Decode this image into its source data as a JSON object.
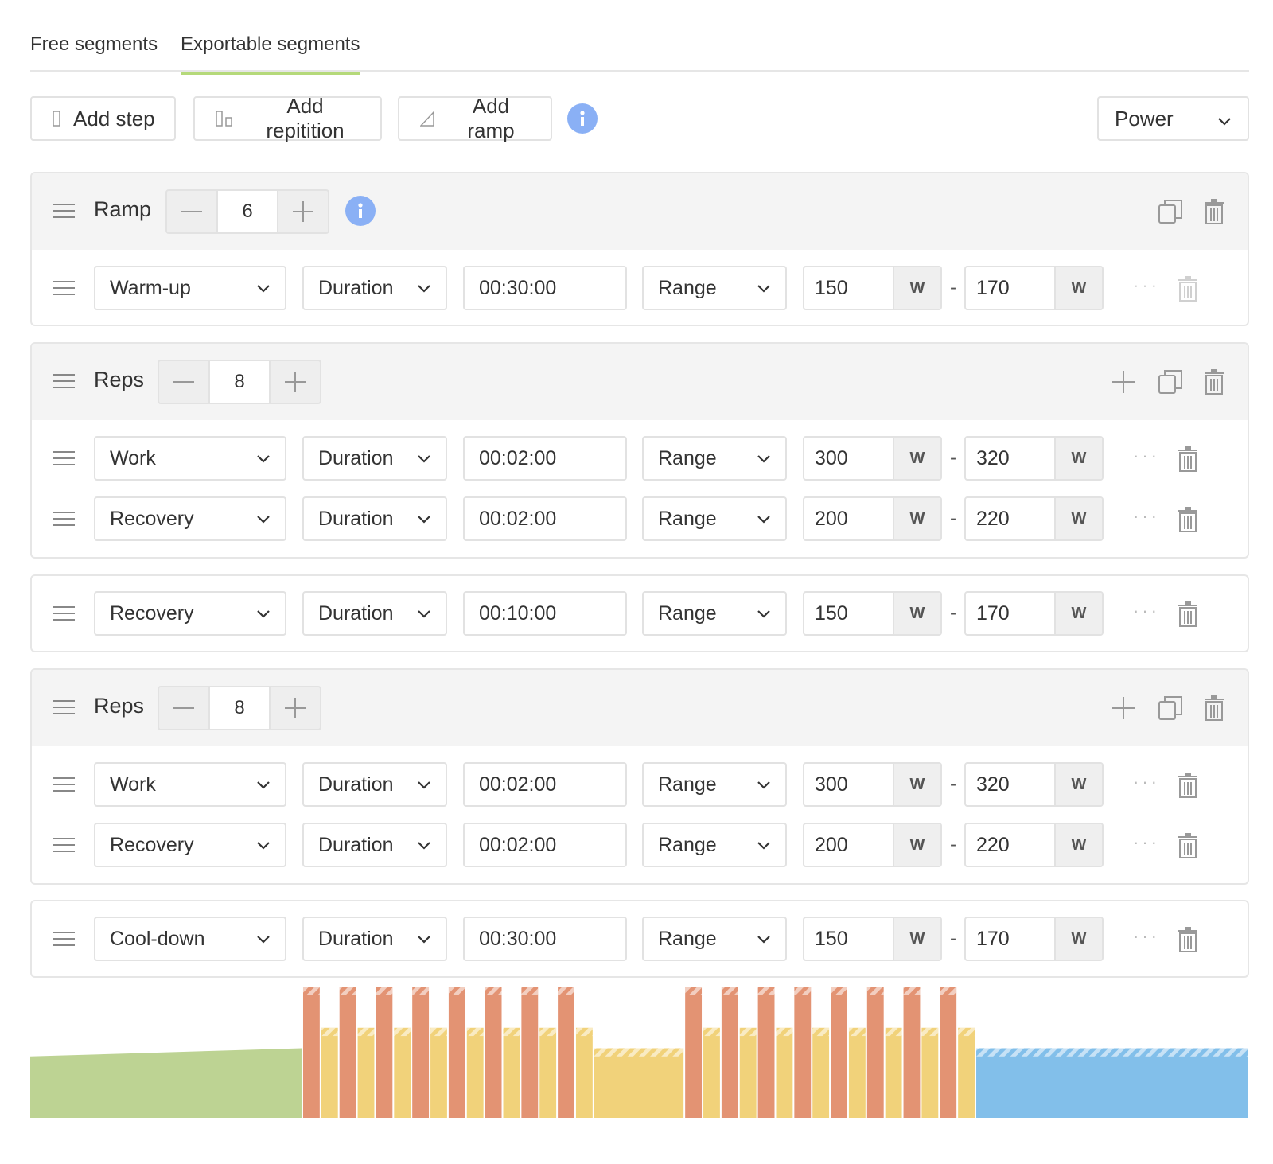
{
  "tabs": [
    {
      "label": "Free segments",
      "active": false
    },
    {
      "label": "Exportable segments",
      "active": true
    }
  ],
  "toolbar": {
    "add_step": "Add step",
    "add_repetition": "Add repitition",
    "add_ramp": "Add ramp",
    "metric_select": "Power"
  },
  "blocks": [
    {
      "kind": "ramp",
      "title": "Ramp",
      "count": "6",
      "steps": [
        {
          "type": "Warm-up",
          "mode": "Duration",
          "time": "00:30:00",
          "target": "Range",
          "low": "150",
          "high": "170",
          "unit": "W"
        }
      ]
    },
    {
      "kind": "reps",
      "title": "Reps",
      "count": "8",
      "steps": [
        {
          "type": "Work",
          "mode": "Duration",
          "time": "00:02:00",
          "target": "Range",
          "low": "300",
          "high": "320",
          "unit": "W"
        },
        {
          "type": "Recovery",
          "mode": "Duration",
          "time": "00:02:00",
          "target": "Range",
          "low": "200",
          "high": "220",
          "unit": "W"
        }
      ]
    },
    {
      "kind": "step",
      "steps": [
        {
          "type": "Recovery",
          "mode": "Duration",
          "time": "00:10:00",
          "target": "Range",
          "low": "150",
          "high": "170",
          "unit": "W"
        }
      ]
    },
    {
      "kind": "reps",
      "title": "Reps",
      "count": "8",
      "steps": [
        {
          "type": "Work",
          "mode": "Duration",
          "time": "00:02:00",
          "target": "Range",
          "low": "300",
          "high": "320",
          "unit": "W"
        },
        {
          "type": "Recovery",
          "mode": "Duration",
          "time": "00:02:00",
          "target": "Range",
          "low": "200",
          "high": "220",
          "unit": "W"
        }
      ]
    },
    {
      "kind": "step",
      "steps": [
        {
          "type": "Cool-down",
          "mode": "Duration",
          "time": "00:30:00",
          "target": "Range",
          "low": "150",
          "high": "170",
          "unit": "W"
        }
      ]
    }
  ],
  "colors": {
    "warmup": "#bdd393",
    "work": "#e39373",
    "recovery": "#f1d27a",
    "cooldown": "#82bfea",
    "tab_underline": "#b5d97a",
    "info": "#8ab0f5"
  }
}
